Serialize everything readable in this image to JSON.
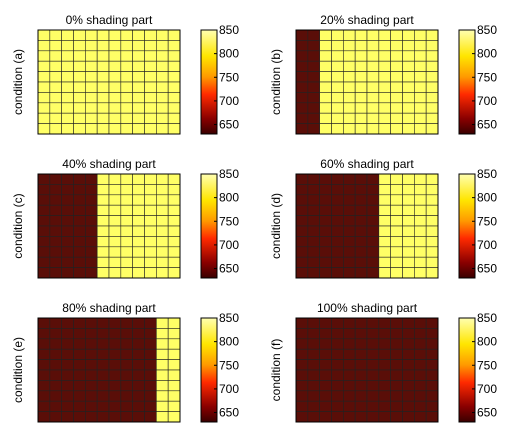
{
  "colormap": {
    "dark": "#3a0000",
    "stops": [
      "#3a0000",
      "#8b0000",
      "#ff2a00",
      "#ff9a00",
      "#ffe600",
      "#ffffb0"
    ],
    "shaded_color": "#5a0e08",
    "unshaded_color": "#ffff66",
    "grid_color": "#222222"
  },
  "chart_data": [
    {
      "type": "heatmap",
      "title": "0% shading part",
      "ylabel": "condition (a)",
      "shading_fraction": 0.0,
      "shaded_value": 640,
      "unshaded_value": 840,
      "grid": {
        "columns": 12,
        "rows": 10
      },
      "colorbar": {
        "range": [
          630,
          850
        ],
        "ticks": [
          650,
          700,
          750,
          800,
          850
        ]
      }
    },
    {
      "type": "heatmap",
      "title": "20% shading part",
      "ylabel": "condition (b)",
      "shading_fraction": 0.2,
      "shaded_value": 640,
      "unshaded_value": 840,
      "grid": {
        "columns": 12,
        "rows": 10
      },
      "colorbar": {
        "range": [
          630,
          850
        ],
        "ticks": [
          650,
          700,
          750,
          800,
          850
        ]
      }
    },
    {
      "type": "heatmap",
      "title": "40% shading part",
      "ylabel": "condition (c)",
      "shading_fraction": 0.4,
      "shaded_value": 640,
      "unshaded_value": 840,
      "grid": {
        "columns": 12,
        "rows": 10
      },
      "colorbar": {
        "range": [
          630,
          850
        ],
        "ticks": [
          650,
          700,
          750,
          800,
          850
        ]
      }
    },
    {
      "type": "heatmap",
      "title": "60% shading part",
      "ylabel": "condition (d)",
      "shading_fraction": 0.6,
      "shaded_value": 640,
      "unshaded_value": 840,
      "grid": {
        "columns": 12,
        "rows": 10
      },
      "colorbar": {
        "range": [
          630,
          850
        ],
        "ticks": [
          650,
          700,
          750,
          800,
          850
        ]
      }
    },
    {
      "type": "heatmap",
      "title": "80% shading part",
      "ylabel": "condition (e)",
      "shading_fraction": 0.8,
      "shaded_value": 640,
      "unshaded_value": 840,
      "grid": {
        "columns": 12,
        "rows": 10
      },
      "colorbar": {
        "range": [
          630,
          850
        ],
        "ticks": [
          650,
          700,
          750,
          800,
          850
        ]
      }
    },
    {
      "type": "heatmap",
      "title": "100% shading part",
      "ylabel": "condition (f)",
      "shading_fraction": 1.0,
      "shaded_value": 640,
      "unshaded_value": 840,
      "grid": {
        "columns": 12,
        "rows": 10
      },
      "colorbar": {
        "range": [
          630,
          850
        ],
        "ticks": [
          650,
          700,
          750,
          800,
          850
        ]
      }
    }
  ]
}
